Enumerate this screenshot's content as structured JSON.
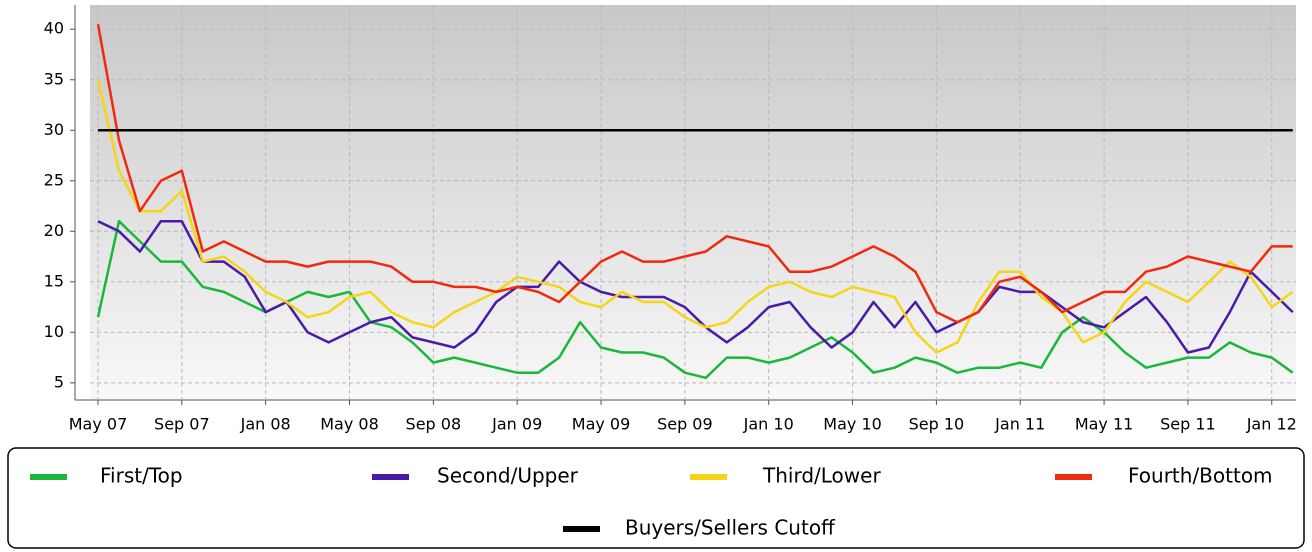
{
  "chart_data": {
    "type": "line",
    "categories": [
      "May 07",
      null,
      null,
      null,
      "Sep 07",
      null,
      null,
      null,
      "Jan 08",
      null,
      null,
      null,
      "May 08",
      null,
      null,
      null,
      "Sep 08",
      null,
      null,
      null,
      "Jan 09",
      null,
      null,
      null,
      "May 09",
      null,
      null,
      null,
      "Sep 09",
      null,
      null,
      null,
      "Jan 10",
      null,
      null,
      null,
      "May 10",
      null,
      null,
      null,
      "Sep 10",
      null,
      null,
      null,
      "Jan 11",
      null,
      null,
      null,
      "May 11",
      null,
      null,
      null,
      "Sep 11",
      null,
      null,
      null,
      "Jan 12",
      null
    ],
    "ylim": [
      3.3,
      42.4
    ],
    "yticks": [
      5,
      10,
      15,
      20,
      25,
      30,
      35,
      40
    ],
    "grid": true,
    "series": [
      {
        "name": "First/Top",
        "color": "#1ab83a",
        "values": [
          11.5,
          21,
          19,
          17,
          17,
          14.5,
          14,
          13,
          12,
          13,
          14,
          13.5,
          14,
          11,
          10.5,
          9,
          7,
          7.5,
          7,
          6.5,
          6,
          6,
          7.5,
          11,
          8.5,
          8,
          8,
          7.5,
          6,
          5.5,
          7.5,
          7.5,
          7,
          7.5,
          8.5,
          9.5,
          8,
          6,
          6.5,
          7.5,
          7,
          6,
          6.5,
          6.5,
          7,
          6.5,
          10,
          11.5,
          10,
          8,
          6.5,
          7,
          7.5,
          7.5,
          9,
          8,
          7.5,
          6
        ]
      },
      {
        "name": "Second/Upper",
        "color": "#4a1aa8",
        "values": [
          21,
          20,
          18,
          21,
          21,
          17,
          17,
          15.5,
          12,
          13,
          10,
          9,
          10,
          11,
          11.5,
          9.5,
          9,
          8.5,
          10,
          13,
          14.5,
          14.5,
          17,
          15,
          14,
          13.5,
          13.5,
          13.5,
          12.5,
          10.5,
          9,
          10.5,
          12.5,
          13,
          10.5,
          8.5,
          10,
          13,
          10.5,
          13,
          10,
          11,
          12,
          14.5,
          14,
          14,
          12.5,
          11,
          10.5,
          12,
          13.5,
          11,
          8,
          8.5,
          12,
          16,
          14,
          12
        ]
      },
      {
        "name": "Third/Lower",
        "color": "#f5d516",
        "values": [
          35,
          26,
          22,
          22,
          24,
          17,
          17.5,
          16,
          14,
          13,
          11.5,
          12,
          13.5,
          14,
          12,
          11,
          10.5,
          12,
          13,
          14,
          15.5,
          15,
          14.5,
          13,
          12.5,
          14,
          13,
          13,
          11.5,
          10.5,
          11,
          13,
          14.5,
          15,
          14,
          13.5,
          14.5,
          14,
          13.5,
          10,
          8,
          9,
          13,
          16,
          16,
          13.5,
          12,
          9,
          10,
          13,
          15,
          14,
          13,
          15,
          17,
          15.5,
          12.5,
          14
        ]
      },
      {
        "name": "Fourth/Bottom",
        "color": "#f02a0e",
        "values": [
          40.5,
          29,
          22,
          25,
          26,
          18,
          19,
          18,
          17,
          17,
          16.5,
          17,
          17,
          17,
          16.5,
          15,
          15,
          14.5,
          14.5,
          14,
          14.5,
          14,
          13,
          15,
          17,
          18,
          17,
          17,
          17.5,
          18,
          19.5,
          19,
          18.5,
          16,
          16,
          16.5,
          17.5,
          18.5,
          17.5,
          16,
          12,
          11,
          12,
          15,
          15.5,
          14,
          12,
          13,
          14,
          14,
          16,
          16.5,
          17.5,
          17,
          16.5,
          16,
          18.5,
          18.5
        ]
      },
      {
        "name": "Buyers/Sellers Cutoff",
        "color": "#000000",
        "values": [
          30,
          30,
          30,
          30,
          30,
          30,
          30,
          30,
          30,
          30,
          30,
          30,
          30,
          30,
          30,
          30,
          30,
          30,
          30,
          30,
          30,
          30,
          30,
          30,
          30,
          30,
          30,
          30,
          30,
          30,
          30,
          30,
          30,
          30,
          30,
          30,
          30,
          30,
          30,
          30,
          30,
          30,
          30,
          30,
          30,
          30,
          30,
          30,
          30,
          30,
          30,
          30,
          30,
          30,
          30,
          30,
          30,
          30
        ]
      }
    ]
  }
}
